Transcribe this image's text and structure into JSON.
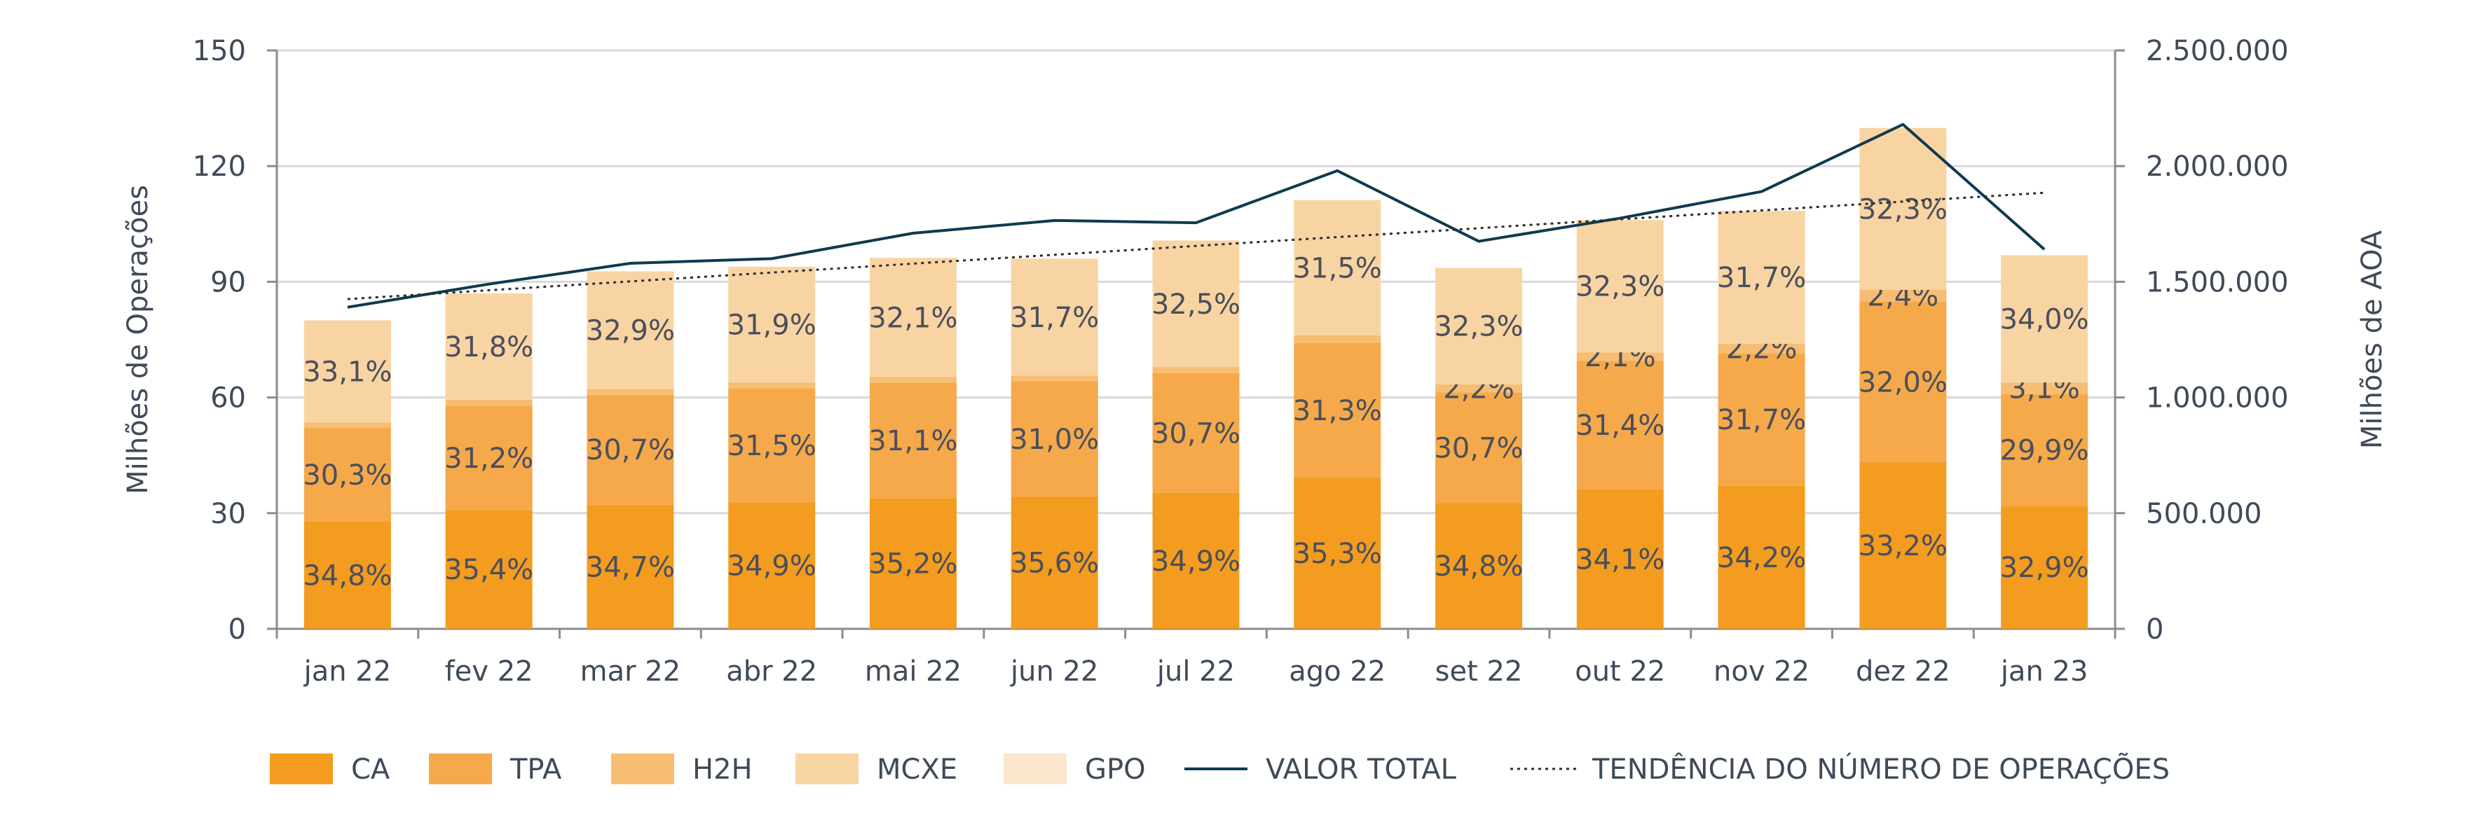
{
  "chart_data": {
    "type": "bar",
    "stacked": true,
    "categories": [
      "jan 22",
      "fev 22",
      "mar 22",
      "abr 22",
      "mai 22",
      "jun 22",
      "jul 22",
      "ago 22",
      "set 22",
      "out 22",
      "nov 22",
      "dez 22",
      "jan 23"
    ],
    "series": [
      {
        "name": "CA",
        "color": "#f39c1f",
        "values": [
          27.8,
          30.8,
          32.2,
          32.8,
          33.9,
          34.3,
          35.3,
          39.3,
          32.6,
          36.2,
          37.1,
          43.2,
          31.9
        ],
        "labels": [
          "34,8%",
          "35,4%",
          "34,7%",
          "34,9%",
          "35,2%",
          "35,6%",
          "34,9%",
          "35,3%",
          "34,8%",
          "34,1%",
          "34,2%",
          "33,2%",
          "32,9%"
        ]
      },
      {
        "name": "TPA",
        "color": "#f5a94a",
        "values": [
          24.3,
          27.1,
          28.5,
          29.6,
          29.9,
          29.9,
          31.0,
          34.8,
          28.7,
          33.3,
          34.4,
          41.6,
          29.0
        ],
        "labels": [
          "30,3%",
          "31,2%",
          "30,7%",
          "31,5%",
          "31,1%",
          "31,0%",
          "30,7%",
          "31,3%",
          "30,7%",
          "31,4%",
          "31,7%",
          "32,0%",
          "29,9%"
        ]
      },
      {
        "name": "H2H",
        "color": "#f7bd72",
        "values": [
          1.4,
          1.5,
          1.5,
          1.5,
          1.5,
          1.5,
          1.6,
          2.0,
          2.1,
          2.2,
          2.4,
          3.1,
          3.0
        ],
        "labels": [
          "",
          "",
          "",
          "",
          "",
          "",
          "",
          "",
          "2,2%",
          "2,1%",
          "2,2%",
          "2,4%",
          "3,1%"
        ]
      },
      {
        "name": "MCXE",
        "color": "#f9d4a3",
        "values": [
          26.5,
          27.6,
          30.5,
          30.0,
          30.9,
          30.3,
          32.8,
          35.1,
          30.2,
          34.3,
          34.5,
          42.0,
          33.0
        ],
        "labels": [
          "33,1%",
          "31,8%",
          "32,9%",
          "31,9%",
          "32,1%",
          "31,7%",
          "32,5%",
          "31,5%",
          "32,3%",
          "32,3%",
          "31,7%",
          "32,3%",
          "34,0%"
        ]
      },
      {
        "name": "GPO",
        "color": "#fbe6cc",
        "values": [
          0,
          0,
          0,
          0,
          0,
          0,
          0,
          0,
          0,
          0,
          0,
          0,
          0
        ],
        "labels": [
          "",
          "",
          "",
          "",
          "",
          "",
          "",
          "",
          "",
          "",
          "",
          "",
          ""
        ]
      }
    ],
    "line_series": [
      {
        "name": "VALOR TOTAL",
        "axis": "right",
        "color": "#0f3a4f",
        "values": [
          1390000,
          1490000,
          1580000,
          1600000,
          1710000,
          1765000,
          1755000,
          1980000,
          1675000,
          1775000,
          1890000,
          2180000,
          1640000
        ]
      },
      {
        "name": "TENDÊNCIA DO NÚMERO DE OPERAÇÕES",
        "axis": "left",
        "style": "dotted",
        "color": "#2b2b2b",
        "values": [
          85.5,
          87.8,
          90.1,
          92.4,
          94.7,
          97.0,
          99.3,
          101.6,
          103.9,
          106.2,
          108.5,
          110.8,
          113.1
        ]
      }
    ],
    "ylabel": "Milhões de Operações",
    "ylabel_right": "Milhões de AOA",
    "ylim": [
      0,
      150
    ],
    "ylim_right": [
      0,
      2500000
    ],
    "yticks": [
      0,
      30,
      60,
      90,
      120,
      150
    ],
    "ytick_labels": [
      "0",
      "30",
      "60",
      "90",
      "120",
      "150"
    ],
    "yticks_right": [
      0,
      500000,
      1000000,
      1500000,
      2000000,
      2500000
    ],
    "ytick_labels_right": [
      "0",
      "500.000",
      "1.000.000",
      "1.500.000",
      "2.000.000",
      "2.500.000"
    ],
    "grid": true,
    "legend_position": "bottom"
  }
}
